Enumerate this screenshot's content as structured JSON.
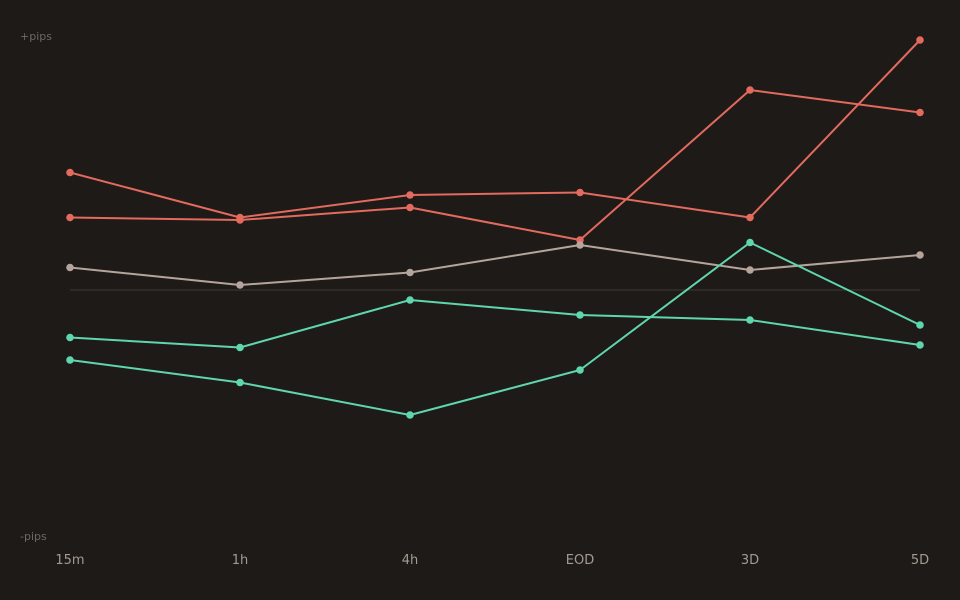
{
  "chart_data": {
    "type": "line",
    "categories": [
      "15m",
      "1h",
      "4h",
      "EOD",
      "3D",
      "5D"
    ],
    "y_top_label": "+pips",
    "y_bottom_label": "-pips",
    "ylim": [
      -100,
      100
    ],
    "zero_line": true,
    "grid": false,
    "legend": "none",
    "series": [
      {
        "color": "#e26a5e",
        "values": [
          47,
          29,
          38,
          39,
          29,
          100
        ]
      },
      {
        "color": "#e26a5e",
        "values": [
          29,
          28,
          33,
          20,
          80,
          71
        ]
      },
      {
        "color": "#b5a49b",
        "values": [
          9,
          2,
          7,
          18,
          8,
          14
        ]
      },
      {
        "color": "#5fd6ad",
        "values": [
          -19,
          -23,
          -4,
          -10,
          -12,
          -22
        ]
      },
      {
        "color": "#5fd6ad",
        "values": [
          -28,
          -37,
          -50,
          -32,
          19,
          -14
        ]
      }
    ]
  },
  "colors": {
    "background": "#1e1a17",
    "zero_line": "#3a3430",
    "axis_text": "#a39a93",
    "corner_text": "#6f6862"
  }
}
